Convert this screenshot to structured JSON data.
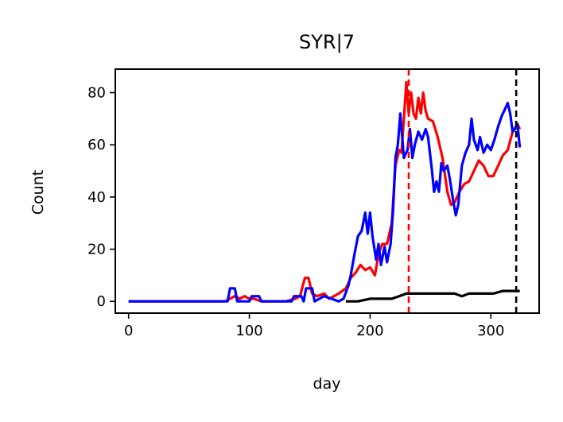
{
  "chart_data": {
    "type": "line",
    "title": "SYR|7",
    "xlabel": "day",
    "ylabel": "Count",
    "xlim": [
      -11,
      340
    ],
    "ylim": [
      -4.5,
      89
    ],
    "xticks": [
      0,
      100,
      200,
      300
    ],
    "yticks": [
      0,
      20,
      40,
      60,
      80
    ],
    "grid": false,
    "series": [
      {
        "color": "#ff0000",
        "style": "solid",
        "points": [
          [
            0,
            0
          ],
          [
            80,
            0
          ],
          [
            84,
            1
          ],
          [
            88,
            2
          ],
          [
            92,
            1
          ],
          [
            96,
            2
          ],
          [
            100,
            1
          ],
          [
            104,
            1
          ],
          [
            110,
            0
          ],
          [
            120,
            0
          ],
          [
            130,
            0
          ],
          [
            138,
            1
          ],
          [
            142,
            2
          ],
          [
            146,
            9
          ],
          [
            149,
            9
          ],
          [
            152,
            3
          ],
          [
            156,
            2
          ],
          [
            162,
            3
          ],
          [
            166,
            1
          ],
          [
            170,
            2
          ],
          [
            174,
            3
          ],
          [
            180,
            5
          ],
          [
            184,
            9
          ],
          [
            188,
            11
          ],
          [
            192,
            14
          ],
          [
            196,
            12
          ],
          [
            200,
            13
          ],
          [
            204,
            10
          ],
          [
            207,
            18
          ],
          [
            210,
            22
          ],
          [
            214,
            22
          ],
          [
            218,
            30
          ],
          [
            221,
            52
          ],
          [
            224,
            58
          ],
          [
            226,
            57
          ],
          [
            228,
            70
          ],
          [
            230,
            84
          ],
          [
            232,
            72
          ],
          [
            234,
            80
          ],
          [
            236,
            72
          ],
          [
            238,
            70
          ],
          [
            240,
            78
          ],
          [
            242,
            72
          ],
          [
            244,
            80
          ],
          [
            246,
            73
          ],
          [
            248,
            70
          ],
          [
            252,
            69
          ],
          [
            256,
            63
          ],
          [
            260,
            55
          ],
          [
            264,
            42
          ],
          [
            267,
            37
          ],
          [
            270,
            38
          ],
          [
            274,
            42
          ],
          [
            278,
            45
          ],
          [
            282,
            46
          ],
          [
            285,
            49
          ],
          [
            290,
            54
          ],
          [
            294,
            52
          ],
          [
            298,
            48
          ],
          [
            302,
            48
          ],
          [
            306,
            52
          ],
          [
            310,
            56
          ],
          [
            314,
            58
          ],
          [
            318,
            65
          ],
          [
            322,
            68
          ],
          [
            324,
            66
          ]
        ]
      },
      {
        "color": "#0000ff",
        "style": "solid",
        "points": [
          [
            0,
            0
          ],
          [
            82,
            0
          ],
          [
            84,
            5
          ],
          [
            88,
            5
          ],
          [
            90,
            0
          ],
          [
            100,
            0
          ],
          [
            102,
            2
          ],
          [
            108,
            2
          ],
          [
            110,
            0
          ],
          [
            135,
            0
          ],
          [
            137,
            2
          ],
          [
            143,
            2
          ],
          [
            145,
            0
          ],
          [
            147,
            5
          ],
          [
            152,
            5
          ],
          [
            154,
            0
          ],
          [
            158,
            1
          ],
          [
            162,
            2
          ],
          [
            168,
            1
          ],
          [
            174,
            0
          ],
          [
            178,
            1
          ],
          [
            182,
            6
          ],
          [
            184,
            10
          ],
          [
            187,
            18
          ],
          [
            190,
            25
          ],
          [
            193,
            27
          ],
          [
            196,
            34
          ],
          [
            198,
            26
          ],
          [
            200,
            34
          ],
          [
            202,
            25
          ],
          [
            205,
            16
          ],
          [
            207,
            22
          ],
          [
            209,
            14
          ],
          [
            212,
            21
          ],
          [
            214,
            15
          ],
          [
            217,
            22
          ],
          [
            219,
            35
          ],
          [
            221,
            55
          ],
          [
            223,
            60
          ],
          [
            225,
            72
          ],
          [
            228,
            55
          ],
          [
            231,
            58
          ],
          [
            233,
            66
          ],
          [
            235,
            55
          ],
          [
            237,
            60
          ],
          [
            240,
            65
          ],
          [
            243,
            62
          ],
          [
            246,
            66
          ],
          [
            248,
            63
          ],
          [
            251,
            51
          ],
          [
            253,
            42
          ],
          [
            255,
            46
          ],
          [
            257,
            42
          ],
          [
            259,
            53
          ],
          [
            261,
            50
          ],
          [
            264,
            52
          ],
          [
            266,
            47
          ],
          [
            269,
            38
          ],
          [
            271,
            33
          ],
          [
            273,
            37
          ],
          [
            276,
            52
          ],
          [
            279,
            57
          ],
          [
            282,
            60
          ],
          [
            284,
            70
          ],
          [
            286,
            62
          ],
          [
            289,
            58
          ],
          [
            291,
            63
          ],
          [
            294,
            57
          ],
          [
            297,
            60
          ],
          [
            300,
            58
          ],
          [
            303,
            62
          ],
          [
            306,
            67
          ],
          [
            309,
            71
          ],
          [
            312,
            74
          ],
          [
            314,
            76
          ],
          [
            316,
            72
          ],
          [
            318,
            65
          ],
          [
            320,
            66
          ],
          [
            322,
            68
          ],
          [
            324,
            59
          ]
        ]
      },
      {
        "color": "#000000",
        "style": "solid",
        "points": [
          [
            180,
            0
          ],
          [
            190,
            0
          ],
          [
            200,
            1
          ],
          [
            210,
            1
          ],
          [
            218,
            1
          ],
          [
            224,
            2
          ],
          [
            230,
            3
          ],
          [
            234,
            3
          ],
          [
            240,
            3
          ],
          [
            250,
            3
          ],
          [
            258,
            3
          ],
          [
            264,
            3
          ],
          [
            270,
            3
          ],
          [
            276,
            2
          ],
          [
            282,
            3
          ],
          [
            290,
            3
          ],
          [
            296,
            3
          ],
          [
            302,
            3
          ],
          [
            310,
            4
          ],
          [
            316,
            4
          ],
          [
            322,
            4
          ],
          [
            324,
            4
          ]
        ]
      }
    ],
    "vlines": [
      {
        "x": 232,
        "color": "#ff0000",
        "style": "dashed"
      },
      {
        "x": 321,
        "color": "#000000",
        "style": "dashed"
      }
    ]
  }
}
